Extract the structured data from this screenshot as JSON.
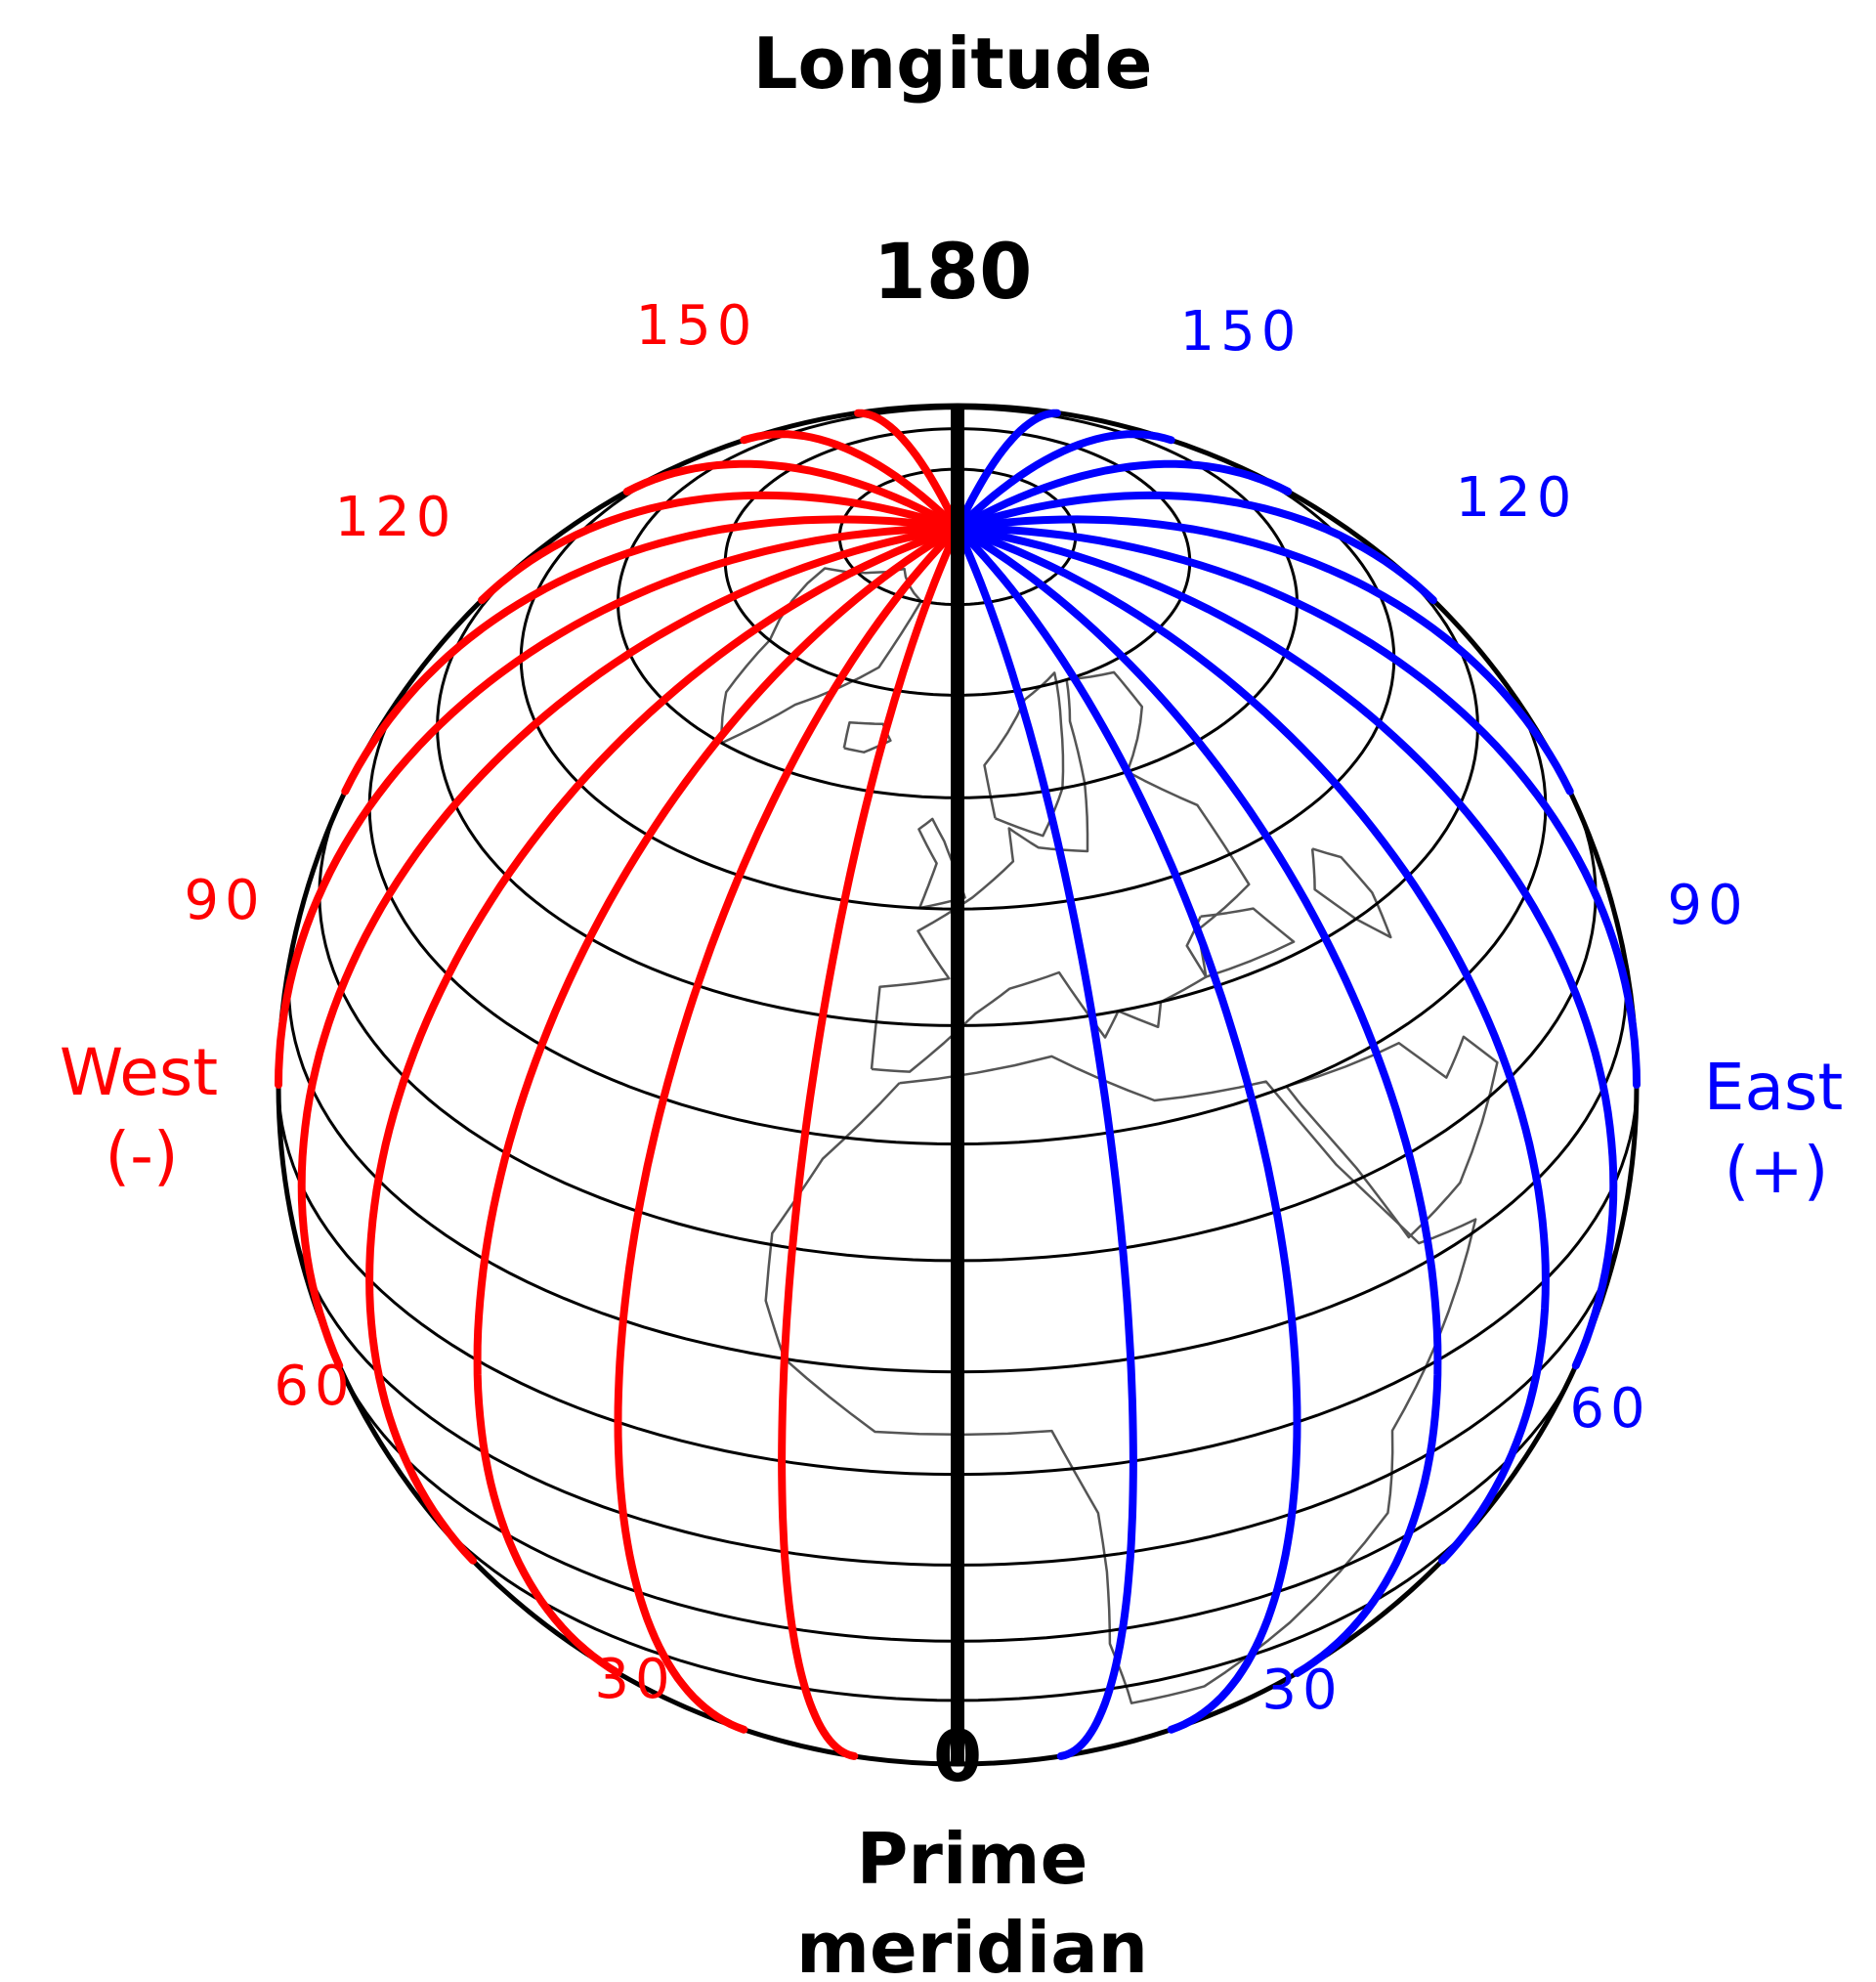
{
  "title": "Longitude",
  "top_label": "180",
  "bottom_label": "0",
  "prime_meridian_label": [
    "Prime",
    "meridian"
  ],
  "west": {
    "label": "West",
    "sign": "(-)",
    "color": "#ff0000",
    "ticks": [
      {
        "value": 150,
        "text": "150"
      },
      {
        "value": 120,
        "text": "120"
      },
      {
        "value": 90,
        "text": "90"
      },
      {
        "value": 60,
        "text": "60"
      },
      {
        "value": 30,
        "text": "30"
      }
    ]
  },
  "east": {
    "label": "East",
    "sign": "(+)",
    "color": "#0000ff",
    "ticks": [
      {
        "value": 150,
        "text": "150"
      },
      {
        "value": 120,
        "text": "120"
      },
      {
        "value": 90,
        "text": "90"
      },
      {
        "value": 60,
        "text": "60"
      },
      {
        "value": 30,
        "text": "30"
      }
    ]
  },
  "meridian_longitudes": [
    15,
    30,
    45,
    60,
    75,
    90,
    105,
    120,
    135,
    150,
    165
  ],
  "latitude_circles": [
    80,
    70,
    60,
    50,
    40,
    30,
    20,
    10,
    0,
    -10,
    -20,
    -30
  ]
}
